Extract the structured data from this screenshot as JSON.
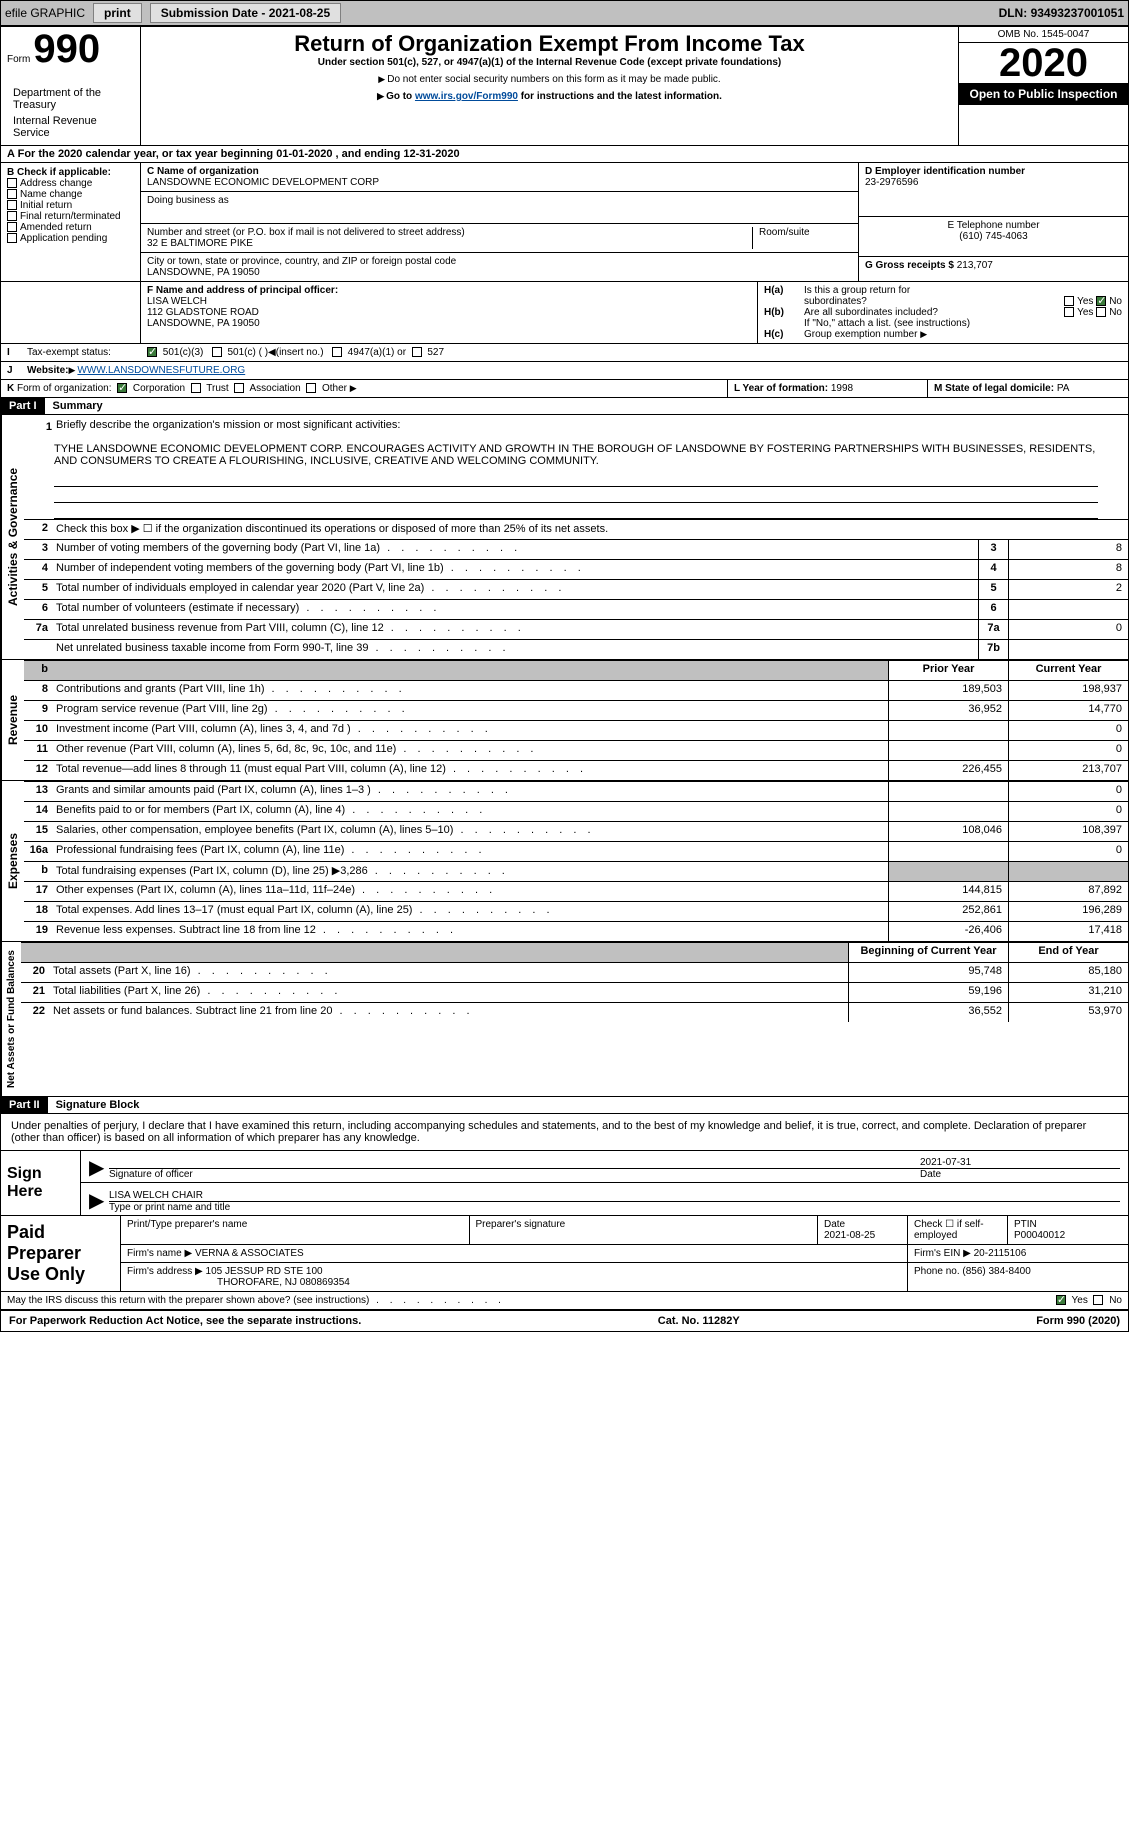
{
  "topbar": {
    "efile": "efile GRAPHIC",
    "print": "print",
    "submission_label": "Submission Date - ",
    "submission_date": "2021-08-25",
    "dln_label": "DLN: ",
    "dln": "93493237001051"
  },
  "header": {
    "form_label": "Form",
    "form_num": "990",
    "dept1": "Department of the Treasury",
    "dept2": "Internal Revenue Service",
    "title": "Return of Organization Exempt From Income Tax",
    "subtitle": "Under section 501(c), 527, or 4947(a)(1) of the Internal Revenue Code (except private foundations)",
    "note1": "Do not enter social security numbers on this form as it may be made public.",
    "note2_pre": "Go to ",
    "note2_link": "www.irs.gov/Form990",
    "note2_post": " for instructions and the latest information.",
    "omb": "OMB No. 1545-0047",
    "year": "2020",
    "inspect": "Open to Public Inspection"
  },
  "section_a": {
    "text_pre": "For the 2020 calendar year, or tax year beginning ",
    "begin": "01-01-2020",
    "mid": " , and ending ",
    "end": "12-31-2020"
  },
  "block_b": {
    "title": "B Check if applicable:",
    "opts": [
      "Address change",
      "Name change",
      "Initial return",
      "Final return/terminated",
      "Amended return",
      "Application pending"
    ]
  },
  "block_c": {
    "name_label": "C Name of organization",
    "name": "LANSDOWNE ECONOMIC DEVELOPMENT CORP",
    "dba_label": "Doing business as",
    "street_label": "Number and street (or P.O. box if mail is not delivered to street address)",
    "street": "32 E BALTIMORE PIKE",
    "room_label": "Room/suite",
    "city_label": "City or town, state or province, country, and ZIP or foreign postal code",
    "city": "LANSDOWNE, PA  19050"
  },
  "block_d": {
    "label": "D Employer identification number",
    "ein": "23-2976596",
    "phone_label": "E Telephone number",
    "phone": "(610) 745-4063",
    "gross_label": "G Gross receipts $ ",
    "gross": "213,707"
  },
  "block_f": {
    "label": "F Name and address of principal officer:",
    "name": "LISA WELCH",
    "addr1": "112 GLADSTONE ROAD",
    "addr2": "LANSDOWNE, PA  19050"
  },
  "block_h": {
    "ha_label": "Is this a group return for",
    "ha_label2": "subordinates?",
    "hb_label": "Are all subordinates included?",
    "hb_note": "If \"No,\" attach a list. (see instructions)",
    "hc_label": "Group exemption number"
  },
  "row_i": {
    "label": "Tax-exempt status:",
    "o1": "501(c)(3)",
    "o2": "501(c) (  )",
    "o2_note": "(insert no.)",
    "o3": "4947(a)(1) or",
    "o4": "527"
  },
  "row_j": {
    "label": "Website:",
    "url": "WWW.LANSDOWNESFUTURE.ORG"
  },
  "row_k": {
    "label": "Form of organization:",
    "o1": "Corporation",
    "o2": "Trust",
    "o3": "Association",
    "o4": "Other"
  },
  "row_l": {
    "label": "L Year of formation: ",
    "val": "1998"
  },
  "row_m": {
    "label": "M State of legal domicile: ",
    "val": "PA"
  },
  "part1": {
    "header": "Part I",
    "title": "Summary",
    "line1_label": "Briefly describe the organization's mission or most significant activities:",
    "mission": "TYHE LANSDOWNE ECONOMIC DEVELOPMENT CORP. ENCOURAGES ACTIVITY AND GROWTH IN THE BOROUGH OF LANSDOWNE BY FOSTERING PARTNERSHIPS WITH BUSINESSES, RESIDENTS, AND CONSUMERS TO CREATE A FLOURISHING, INCLUSIVE, CREATIVE AND WELCOMING COMMUNITY.",
    "line2": "Check this box ▶ ☐  if the organization discontinued its operations or disposed of more than 25% of its net assets.",
    "vert_gov": "Activities & Governance",
    "vert_rev": "Revenue",
    "vert_exp": "Expenses",
    "vert_net": "Net Assets or Fund Balances",
    "prior_year": "Prior Year",
    "current_year": "Current Year",
    "begin_year": "Beginning of Current Year",
    "end_year": "End of Year"
  },
  "gov_lines": [
    {
      "num": "3",
      "text": "Number of voting members of the governing body (Part VI, line 1a)",
      "box": "3",
      "val": "8"
    },
    {
      "num": "4",
      "text": "Number of independent voting members of the governing body (Part VI, line 1b)",
      "box": "4",
      "val": "8"
    },
    {
      "num": "5",
      "text": "Total number of individuals employed in calendar year 2020 (Part V, line 2a)",
      "box": "5",
      "val": "2"
    },
    {
      "num": "6",
      "text": "Total number of volunteers (estimate if necessary)",
      "box": "6",
      "val": ""
    },
    {
      "num": "7a",
      "text": "Total unrelated business revenue from Part VIII, column (C), line 12",
      "box": "7a",
      "val": "0"
    },
    {
      "num": " ",
      "text": "Net unrelated business taxable income from Form 990-T, line 39",
      "box": "7b",
      "val": ""
    }
  ],
  "rev_lines": [
    {
      "num": "8",
      "text": "Contributions and grants (Part VIII, line 1h)",
      "prior": "189,503",
      "cur": "198,937"
    },
    {
      "num": "9",
      "text": "Program service revenue (Part VIII, line 2g)",
      "prior": "36,952",
      "cur": "14,770"
    },
    {
      "num": "10",
      "text": "Investment income (Part VIII, column (A), lines 3, 4, and 7d )",
      "prior": "",
      "cur": "0"
    },
    {
      "num": "11",
      "text": "Other revenue (Part VIII, column (A), lines 5, 6d, 8c, 9c, 10c, and 11e)",
      "prior": "",
      "cur": "0"
    },
    {
      "num": "12",
      "text": "Total revenue—add lines 8 through 11 (must equal Part VIII, column (A), line 12)",
      "prior": "226,455",
      "cur": "213,707"
    }
  ],
  "exp_lines": [
    {
      "num": "13",
      "text": "Grants and similar amounts paid (Part IX, column (A), lines 1–3 )",
      "prior": "",
      "cur": "0"
    },
    {
      "num": "14",
      "text": "Benefits paid to or for members (Part IX, column (A), line 4)",
      "prior": "",
      "cur": "0"
    },
    {
      "num": "15",
      "text": "Salaries, other compensation, employee benefits (Part IX, column (A), lines 5–10)",
      "prior": "108,046",
      "cur": "108,397"
    },
    {
      "num": "16a",
      "text": "Professional fundraising fees (Part IX, column (A), line 11e)",
      "prior": "",
      "cur": "0"
    },
    {
      "num": "b",
      "text": "Total fundraising expenses (Part IX, column (D), line 25) ▶3,286",
      "prior": "shaded",
      "cur": "shaded"
    },
    {
      "num": "17",
      "text": "Other expenses (Part IX, column (A), lines 11a–11d, 11f–24e)",
      "prior": "144,815",
      "cur": "87,892"
    },
    {
      "num": "18",
      "text": "Total expenses. Add lines 13–17 (must equal Part IX, column (A), line 25)",
      "prior": "252,861",
      "cur": "196,289"
    },
    {
      "num": "19",
      "text": "Revenue less expenses. Subtract line 18 from line 12",
      "prior": "-26,406",
      "cur": "17,418"
    }
  ],
  "net_lines": [
    {
      "num": "20",
      "text": "Total assets (Part X, line 16)",
      "prior": "95,748",
      "cur": "85,180"
    },
    {
      "num": "21",
      "text": "Total liabilities (Part X, line 26)",
      "prior": "59,196",
      "cur": "31,210"
    },
    {
      "num": "22",
      "text": "Net assets or fund balances. Subtract line 21 from line 20",
      "prior": "36,552",
      "cur": "53,970"
    }
  ],
  "part2": {
    "header": "Part II",
    "title": "Signature Block",
    "declaration": "Under penalties of perjury, I declare that I have examined this return, including accompanying schedules and statements, and to the best of my knowledge and belief, it is true, correct, and complete. Declaration of preparer (other than officer) is based on all information of which preparer has any knowledge.",
    "sign_here": "Sign Here",
    "sig_officer": "Signature of officer",
    "sig_date": "2021-07-31",
    "date_label": "Date",
    "officer_name": "LISA WELCH CHAIR",
    "officer_name_label": "Type or print name and title",
    "paid_prep": "Paid Preparer Use Only",
    "prep_name_label": "Print/Type preparer's name",
    "prep_sig_label": "Preparer's signature",
    "prep_date_label": "Date",
    "prep_date": "2021-08-25",
    "self_emp": "Check ☐ if self-employed",
    "ptin_label": "PTIN",
    "ptin": "P00040012",
    "firm_name_label": "Firm's name   ▶ ",
    "firm_name": "VERNA & ASSOCIATES",
    "firm_ein_label": "Firm's EIN ▶ ",
    "firm_ein": "20-2115106",
    "firm_addr_label": "Firm's address ▶ ",
    "firm_addr": "105 JESSUP RD STE 100",
    "firm_addr2": "THOROFARE, NJ  080869354",
    "firm_phone_label": "Phone no. ",
    "firm_phone": "(856) 384-8400",
    "irs_discuss": "May the IRS discuss this return with the preparer shown above? (see instructions)"
  },
  "footer": {
    "paperwork": "For Paperwork Reduction Act Notice, see the separate instructions.",
    "cat": "Cat. No. 11282Y",
    "form": "Form 990 (2020)"
  },
  "labels": {
    "yes": "Yes",
    "no": "No",
    "a": "A",
    "b": "b",
    "h_a": "H(a)",
    "h_b": "H(b)",
    "h_c": "H(c)",
    "i": "I",
    "j": "J",
    "k": "K",
    "one": "1",
    "two": "2"
  }
}
